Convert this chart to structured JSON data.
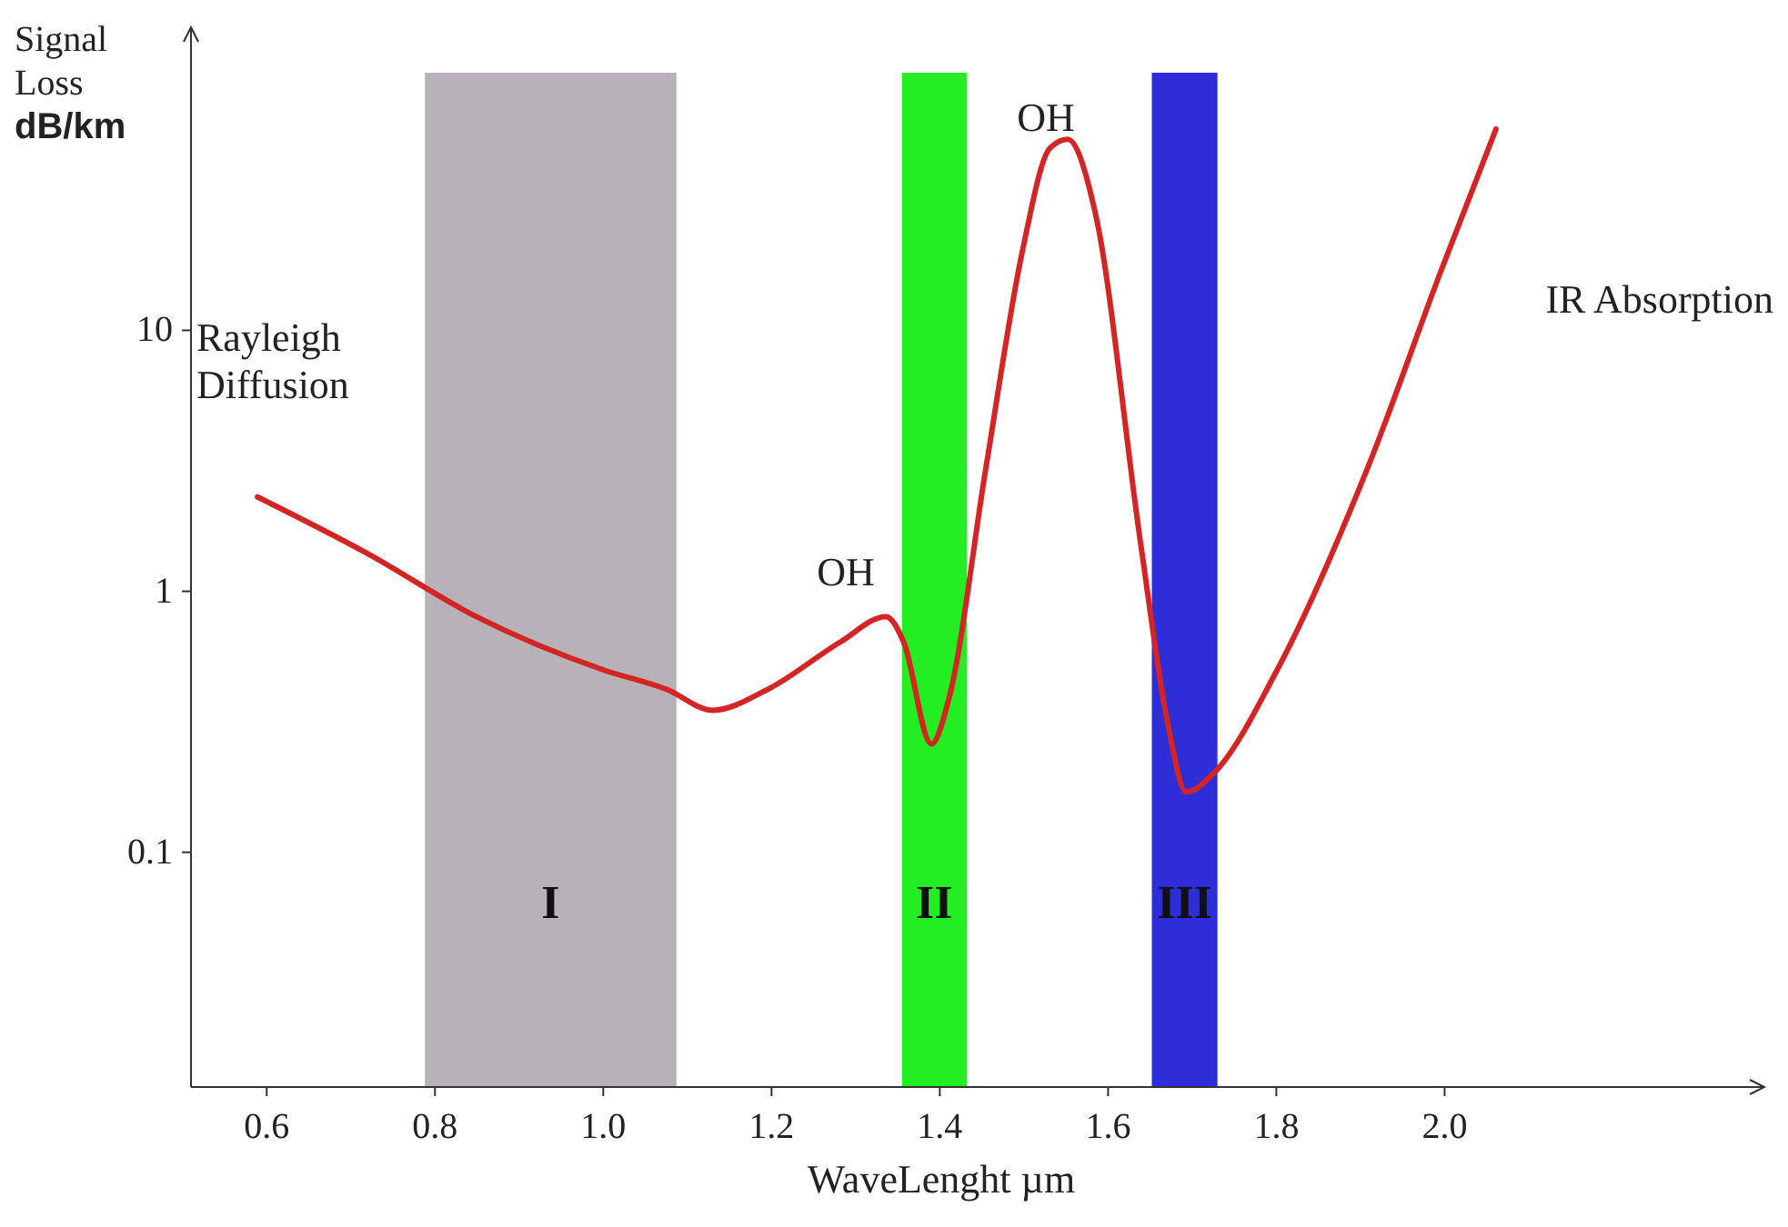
{
  "chart_data": {
    "type": "line",
    "xlabel": "WaveLenght µm",
    "ylabel": "Signal Loss dB/km",
    "log": "y",
    "grid": false,
    "xlim": [
      0.51,
      2.38
    ],
    "ylim": [
      0.0126,
      145
    ],
    "xticks": [
      {
        "value": 0.6,
        "label": "0.6"
      },
      {
        "value": 0.8,
        "label": "0.8"
      },
      {
        "value": 1.0,
        "label": "1.0"
      },
      {
        "value": 1.2,
        "label": "1.2"
      },
      {
        "value": 1.4,
        "label": "1.4"
      },
      {
        "value": 1.6,
        "label": "1.6"
      },
      {
        "value": 1.8,
        "label": "1.8"
      },
      {
        "value": 2.0,
        "label": "2.0"
      }
    ],
    "yticks": [
      0.1,
      1,
      10
    ],
    "series": [
      {
        "color": "#d42424",
        "x": [
          0.589,
          0.719,
          0.849,
          1.0,
          1.076,
          1.13,
          1.195,
          1.282,
          1.336,
          1.357,
          1.39,
          1.411,
          1.455,
          1.498,
          1.531,
          1.552,
          1.585,
          1.639,
          1.671,
          1.693,
          1.725,
          1.801,
          1.909,
          1.996,
          2.061
        ],
        "values": [
          2.3,
          1.4,
          0.8,
          0.5,
          0.42,
          0.35,
          0.42,
          0.64,
          0.8,
          0.64,
          0.26,
          0.39,
          3,
          20,
          50,
          54,
          28,
          1.5,
          0.31,
          0.17,
          0.2,
          0.5,
          3,
          17,
          59
        ]
      }
    ],
    "bands": [
      {
        "axis": "x",
        "from": 0.788,
        "to": 1.087,
        "label": "I",
        "color": "#b7b2b7"
      },
      {
        "axis": "x",
        "from": 1.355,
        "to": 1.432,
        "label": "II",
        "color": "#22ee22"
      },
      {
        "axis": "x",
        "from": 1.652,
        "to": 1.73,
        "label": "III",
        "color": "#2e2ed8"
      }
    ],
    "annotations": [
      "OH",
      "OH",
      "Rayleigh Diffusion",
      "IR Absorption"
    ]
  }
}
